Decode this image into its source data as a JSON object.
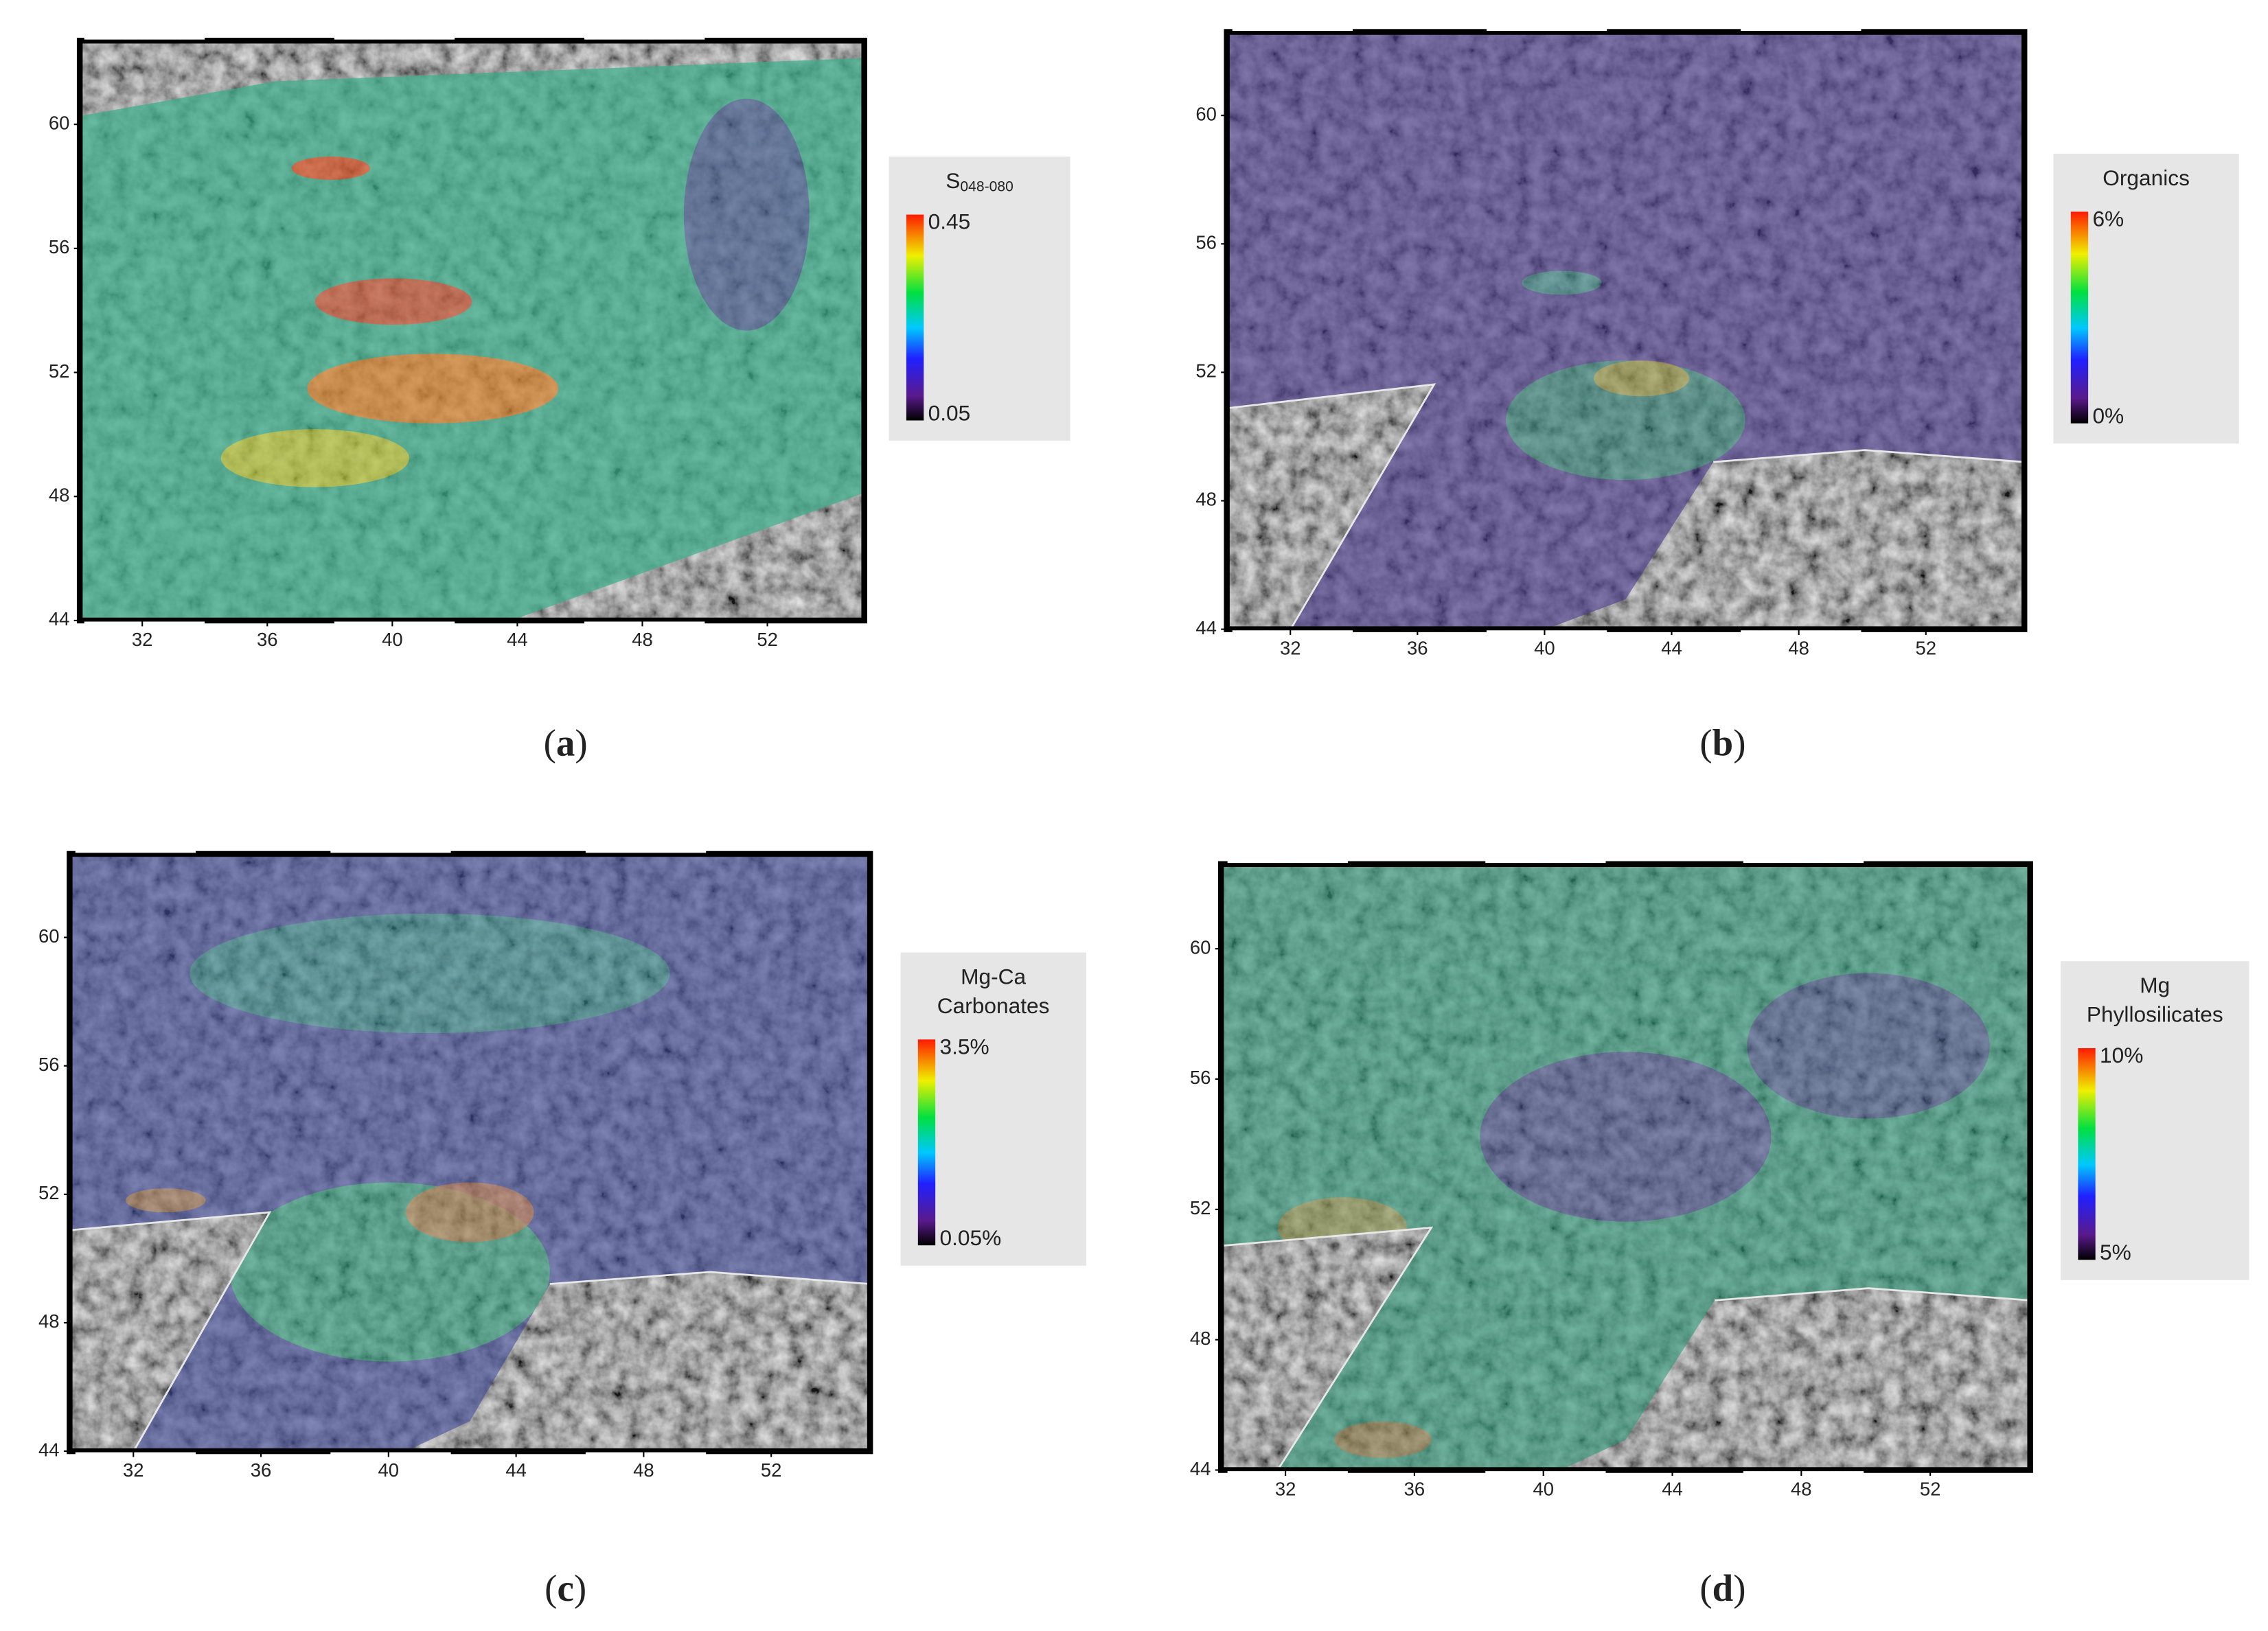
{
  "panels": [
    {
      "xticks": [
        32,
        36,
        40,
        44,
        48,
        52
      ],
      "yticks": [
        44,
        48,
        52,
        56,
        60
      ],
      "xlim": [
        30,
        55.1
      ],
      "ylim": [
        44,
        62.7
      ],
      "colorbar": {
        "title": [
          "S"
        ],
        "subscript": "048-080",
        "max": "0.45",
        "min": "0.05"
      },
      "caption": [
        "(",
        "a",
        ")"
      ]
    },
    {
      "xticks": [
        32,
        36,
        40,
        44,
        48,
        52
      ],
      "yticks": [
        44,
        48,
        52,
        56,
        60
      ],
      "xlim": [
        30,
        55.1
      ],
      "ylim": [
        44,
        62.6
      ],
      "colorbar": {
        "title": [
          "Organics"
        ],
        "max": "6%",
        "min": "0%"
      },
      "caption": [
        "(",
        "b",
        ")"
      ]
    },
    {
      "xticks": [
        32,
        36,
        40,
        44,
        48,
        52
      ],
      "yticks": [
        44,
        48,
        52,
        56,
        60
      ],
      "xlim": [
        30,
        55.1
      ],
      "ylim": [
        44,
        62.6
      ],
      "colorbar": {
        "title": [
          "Mg-Ca",
          "Carbonates"
        ],
        "max": "3.5%",
        "min": "0.05%"
      },
      "caption": [
        "(",
        "c",
        ")"
      ]
    },
    {
      "xticks": [
        32,
        36,
        40,
        44,
        48,
        52
      ],
      "yticks": [
        44,
        48,
        52,
        56,
        60
      ],
      "xlim": [
        30,
        55.1
      ],
      "ylim": [
        44,
        62.6
      ],
      "colorbar": {
        "title": [
          "Mg",
          "Phyllosilicates"
        ],
        "max": "10%",
        "min": "5%"
      },
      "caption": [
        "(",
        "d",
        ")"
      ]
    }
  ]
}
